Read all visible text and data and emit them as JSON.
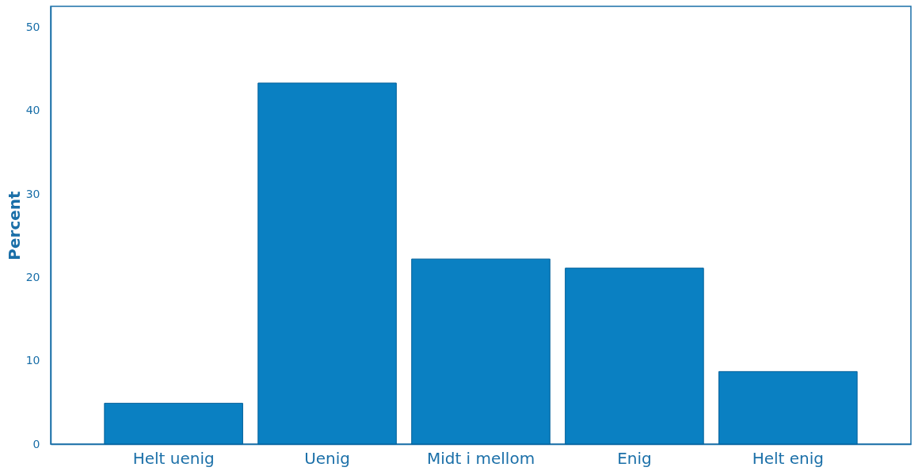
{
  "chart_data": {
    "type": "bar",
    "ylabel": "Percent",
    "categories": [
      "Helt uenig",
      "Uenig",
      "Midt i mellom",
      "Enig",
      "Helt enig"
    ],
    "values": [
      4.9,
      43.3,
      22.2,
      21.1,
      8.7
    ],
    "color": "#0a80c2",
    "ylim": [
      0,
      52.5
    ],
    "yticks": [
      0,
      10,
      20,
      30,
      40,
      50
    ],
    "grid": false
  }
}
